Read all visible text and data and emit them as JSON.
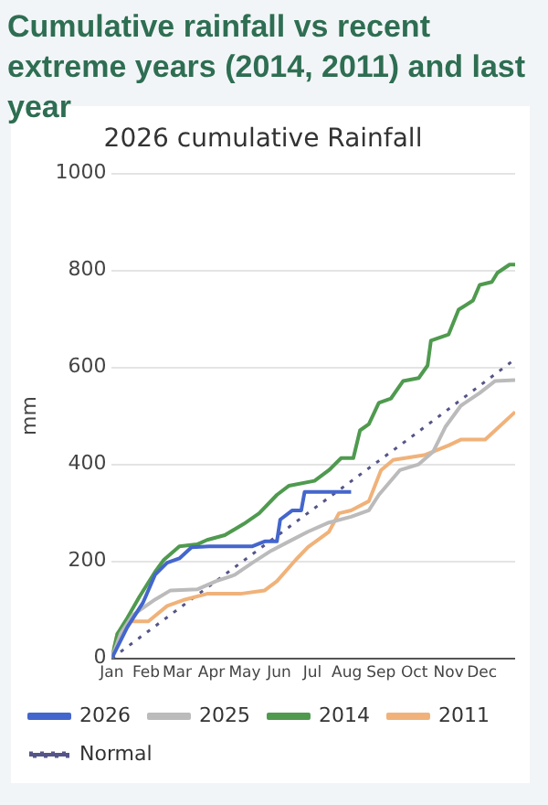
{
  "chart_data": {
    "type": "line",
    "title": "Cumulative rainfall vs recent extreme years (2014, 2011) and last year",
    "subtitle": "2026 cumulative Rainfall",
    "ylabel": "mm",
    "xlim": [
      "--01-01",
      "--12-31"
    ],
    "xticks": [
      {
        "value": "--01-01",
        "label": "Jan"
      },
      {
        "value": "--02-01",
        "label": "Feb"
      },
      {
        "value": "--03-01",
        "label": "Mar"
      },
      {
        "value": "--04-01",
        "label": "Apr"
      },
      {
        "value": "--05-01",
        "label": "May"
      },
      {
        "value": "--06-01",
        "label": "Jun"
      },
      {
        "value": "--07-01",
        "label": "Jul"
      },
      {
        "value": "--08-01",
        "label": "Aug"
      },
      {
        "value": "--09-01",
        "label": "Sep"
      },
      {
        "value": "--10-01",
        "label": "Oct"
      },
      {
        "value": "--11-01",
        "label": "Nov"
      },
      {
        "value": "--12-01",
        "label": "Dec"
      }
    ],
    "ylim": [
      0,
      1000
    ],
    "yticks": [
      0,
      200,
      400,
      600,
      800,
      1000
    ],
    "grid": "y",
    "legend": "bottom",
    "marker": "none",
    "series": [
      {
        "name": "2026",
        "color": "#4466cc",
        "x": [
          "--01-01",
          "--01-15",
          "--01-29",
          "--02-09",
          "--02-20",
          "--03-03",
          "--03-14",
          "--03-30",
          "--05-08",
          "--05-19",
          "--05-30",
          "--06-02",
          "--06-13",
          "--06-21",
          "--06-24",
          "--07-03",
          "--08-05"
        ],
        "values": [
          0,
          64,
          114,
          172,
          197,
          206,
          229,
          231,
          231,
          241,
          241,
          286,
          305,
          305,
          343,
          343,
          343
        ]
      },
      {
        "name": "2025",
        "color": "#bbbbbb",
        "x": [
          "--01-01",
          "--01-09",
          "--01-20",
          "--02-09",
          "--02-23",
          "--03-19",
          "--04-05",
          "--04-22",
          "--05-08",
          "--05-25",
          "--06-10",
          "--06-27",
          "--07-16",
          "--08-05",
          "--08-21",
          "--08-30",
          "--09-18",
          "--10-05",
          "--10-18",
          "--10-29",
          "--11-12",
          "--11-29",
          "--12-13",
          "--12-31"
        ],
        "values": [
          0,
          51,
          89,
          121,
          140,
          142,
          159,
          172,
          197,
          222,
          241,
          261,
          280,
          292,
          305,
          337,
          388,
          400,
          426,
          477,
          521,
          547,
          572,
          574
        ]
      },
      {
        "name": "2014",
        "color": "#4f9a4f",
        "x": [
          "--01-01",
          "--01-06",
          "--01-15",
          "--01-26",
          "--02-09",
          "--02-17",
          "--03-03",
          "--03-19",
          "--03-28",
          "--04-13",
          "--04-30",
          "--05-14",
          "--05-30",
          "--06-10",
          "--07-03",
          "--07-16",
          "--07-27",
          "--08-07",
          "--08-13",
          "--08-21",
          "--08-30",
          "--09-10",
          "--09-21",
          "--10-05",
          "--10-13",
          "--10-16",
          "--11-01",
          "--11-10",
          "--11-23",
          "--11-29",
          "--12-10",
          "--12-15",
          "--12-26",
          "--12-31"
        ],
        "values": [
          0,
          50,
          83,
          127,
          178,
          203,
          231,
          235,
          244,
          254,
          277,
          299,
          337,
          356,
          366,
          388,
          413,
          413,
          470,
          483,
          527,
          536,
          572,
          578,
          604,
          655,
          668,
          719,
          738,
          770,
          776,
          795,
          812,
          812
        ]
      },
      {
        "name": "2011",
        "color": "#f0b27a",
        "x": [
          "--01-01",
          "--01-06",
          "--01-18",
          "--02-03",
          "--02-20",
          "--03-08",
          "--03-28",
          "--04-27",
          "--05-19",
          "--05-30",
          "--06-16",
          "--06-27",
          "--07-16",
          "--07-25",
          "--08-05",
          "--08-21",
          "--09-01",
          "--09-12",
          "--10-10",
          "--11-01",
          "--11-12",
          "--12-04",
          "--12-13",
          "--12-31"
        ],
        "values": [
          0,
          51,
          76,
          76,
          108,
          121,
          133,
          133,
          140,
          159,
          203,
          229,
          261,
          299,
          305,
          324,
          388,
          409,
          419,
          439,
          451,
          451,
          470,
          508
        ]
      },
      {
        "name": "Normal",
        "color": "#555588",
        "line_style": "dotted",
        "x": [
          "--01-01",
          "--04-02",
          "--07-02",
          "--10-01",
          "--12-31"
        ],
        "values": [
          0,
          154,
          308,
          461,
          617
        ]
      }
    ]
  }
}
